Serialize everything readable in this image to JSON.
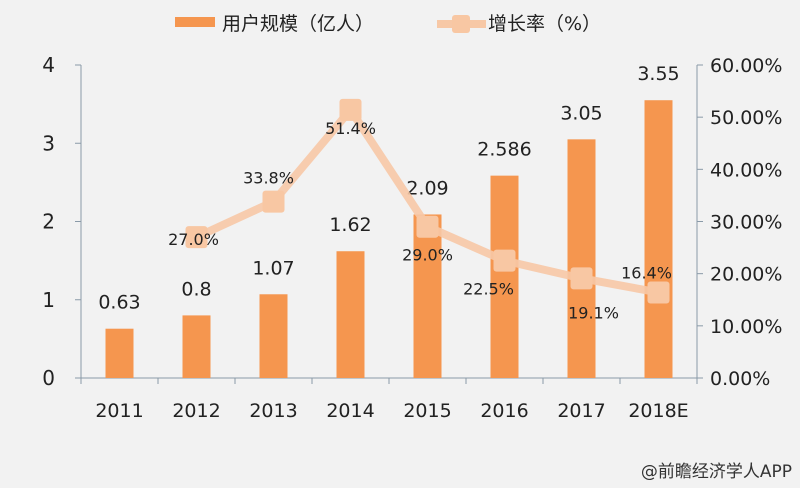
{
  "chart_data": {
    "type": "bar",
    "categories": [
      "2011",
      "2012",
      "2013",
      "2014",
      "2015",
      "2016",
      "2017",
      "2018E"
    ],
    "series": [
      {
        "name": "用户规模（亿人）",
        "type": "bar",
        "axis": "left",
        "values": [
          0.63,
          0.8,
          1.07,
          1.62,
          2.09,
          2.586,
          3.05,
          3.55
        ],
        "labels": [
          "0.63",
          "0.8",
          "1.07",
          "1.62",
          "2.09",
          "2.586",
          "3.05",
          "3.55"
        ],
        "color": "#f5964f"
      },
      {
        "name": "增长率（%）",
        "type": "line",
        "axis": "right",
        "values": [
          null,
          27.0,
          33.8,
          51.4,
          29.0,
          22.5,
          19.1,
          16.4
        ],
        "labels": [
          "",
          "27.0%",
          "33.8%",
          "51.4%",
          "29.0%",
          "22.5%",
          "19.1%",
          "16.4%"
        ],
        "color": "#f7c8a6"
      }
    ],
    "left_axis": {
      "ylim": [
        0,
        4
      ],
      "ticks": [
        "0",
        "1",
        "2",
        "3",
        "4"
      ]
    },
    "right_axis": {
      "ylim": [
        0,
        60
      ],
      "ticks": [
        "0.00%",
        "10.00%",
        "20.00%",
        "30.00%",
        "40.00%",
        "50.00%",
        "60.00%"
      ]
    },
    "legend": "top",
    "grid": false
  },
  "watermark": "@前瞻经济学人APP"
}
